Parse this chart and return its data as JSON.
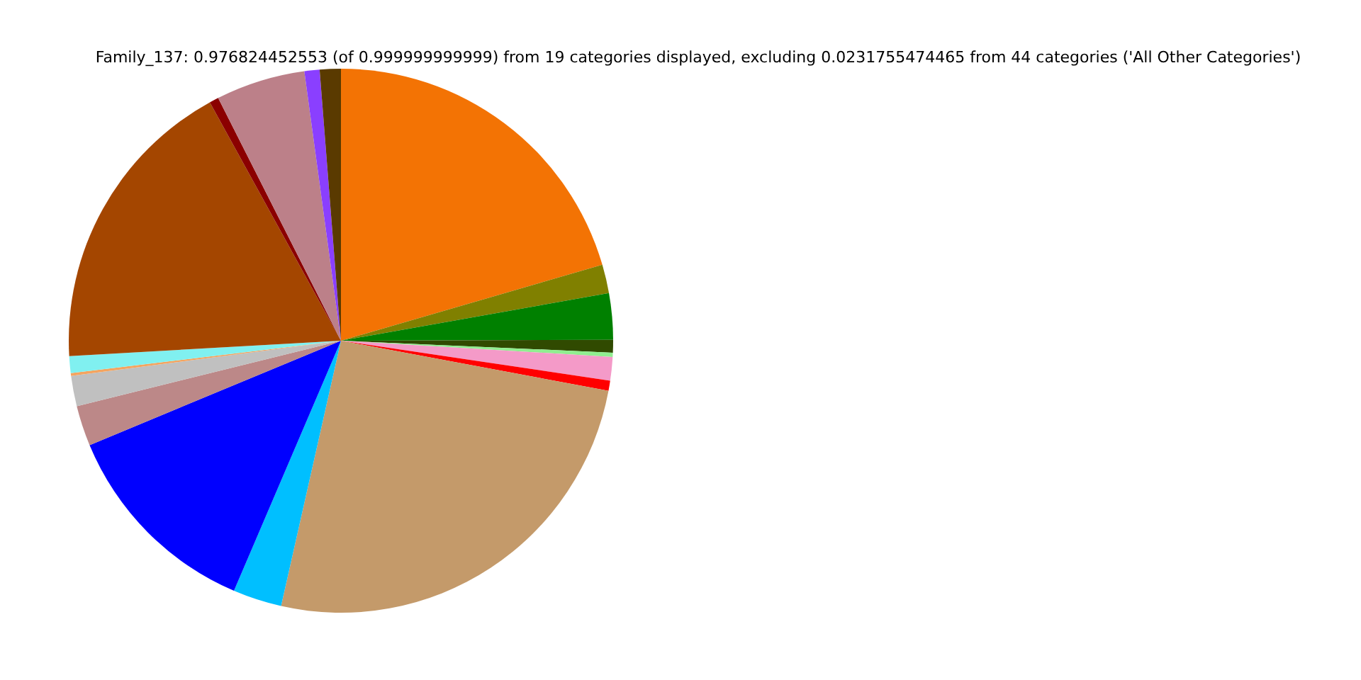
{
  "chart_data": {
    "type": "pie",
    "title": "Family_137: 0.976824452553 (of 0.999999999999) from 19 categories displayed, excluding 0.0231755474465 from 44 categories ('All Other Categories')",
    "categories": [
      null,
      null,
      null,
      null,
      null,
      null,
      null,
      null,
      null,
      null,
      null,
      null,
      null,
      null,
      null,
      null,
      null,
      null,
      null
    ],
    "values": [
      20.5,
      1.7,
      2.75,
      0.75,
      0.25,
      1.4,
      0.6,
      25.58,
      2.9,
      12.3,
      2.4,
      1.8,
      0.17,
      1.0,
      17.9,
      0.55,
      5.3,
      0.9,
      1.25
    ],
    "colors": [
      "#f37304",
      "#808000",
      "#008000",
      "#304a00",
      "#90ee90",
      "#f49ac8",
      "#ff0000",
      "#c49a6a",
      "#00bfff",
      "#0000ff",
      "#bc8888",
      "#c0c0c0",
      "#f4a460",
      "#80f0f0",
      "#a44600",
      "#8b0000",
      "#bc8089",
      "#8a3fff",
      "#5a3a00"
    ]
  }
}
